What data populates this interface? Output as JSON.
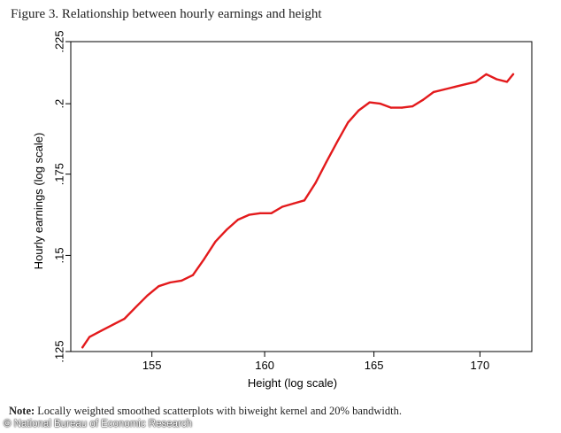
{
  "figure_title": "Figure 3. Relationship between hourly earnings and height",
  "note_label": "Note:",
  "note_text": " Locally weighted smoothed scatterplots with biweight kernel and 20% bandwidth.",
  "credit": "© National Bureau of Economic Research",
  "chart_data": {
    "type": "line",
    "title": "Figure 3. Relationship between hourly earnings and height",
    "xlabel": "Height (log scale)",
    "ylabel": "Hourly earnings (log scale)",
    "x_scale": "log",
    "y_scale": "log",
    "xlim": [
      151.5,
      172.5
    ],
    "ylim": [
      0.125,
      0.225
    ],
    "x_ticks": [
      155,
      160,
      165,
      170
    ],
    "x_tick_labels": [
      "155",
      "160",
      "165",
      "170"
    ],
    "y_ticks": [
      0.125,
      0.15,
      0.175,
      0.2,
      0.225
    ],
    "y_tick_labels": [
      ".125",
      ".15",
      ".175",
      ".2",
      ".225"
    ],
    "grid": false,
    "line_color": "#e31a1c",
    "series": [
      {
        "x": [
          152.0,
          152.3,
          152.8,
          153.3,
          153.8,
          154.3,
          154.8,
          155.3,
          155.8,
          156.3,
          156.8,
          157.3,
          157.8,
          158.3,
          158.8,
          159.3,
          159.8,
          160.3,
          160.8,
          161.3,
          161.8,
          162.3,
          162.8,
          163.3,
          163.8,
          164.3,
          164.8,
          165.3,
          165.8,
          166.3,
          166.8,
          167.3,
          167.8,
          168.3,
          168.8,
          169.3,
          169.8,
          170.3,
          170.8,
          171.3,
          171.6
        ],
        "y": [
          0.126,
          0.1285,
          0.13,
          0.1315,
          0.133,
          0.136,
          0.139,
          0.1415,
          0.1425,
          0.143,
          0.1445,
          0.149,
          0.154,
          0.1575,
          0.1605,
          0.162,
          0.1625,
          0.1625,
          0.1645,
          0.1655,
          0.1665,
          0.172,
          0.179,
          0.186,
          0.193,
          0.1975,
          0.2005,
          0.2,
          0.1985,
          0.1985,
          0.199,
          0.2015,
          0.2045,
          0.2055,
          0.2065,
          0.2075,
          0.2085,
          0.2115,
          0.2095,
          0.2085,
          0.2115
        ]
      }
    ]
  }
}
